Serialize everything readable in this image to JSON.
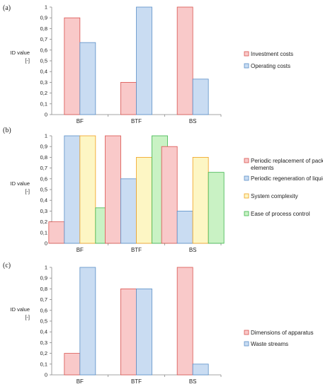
{
  "chart_data": [
    {
      "type": "bar",
      "panel_label": "(a)",
      "ylabel": [
        "ID value",
        "[-]"
      ],
      "categories": [
        "BF",
        "BTF",
        "BS"
      ],
      "yticks": [
        "0",
        "0,1",
        "0,2",
        "0,3",
        "0,4",
        "0,5",
        "0,6",
        "0,7",
        "0,8",
        "0,9",
        "1"
      ],
      "ylim": [
        0,
        1
      ],
      "legend_position": "right",
      "series": [
        {
          "name": "Investment costs",
          "values": [
            0.9,
            0.3,
            1.0
          ],
          "fill": "#f9c9c9",
          "stroke": "#d9534f"
        },
        {
          "name": "Operating costs",
          "values": [
            0.67,
            1.0,
            0.33
          ],
          "fill": "#c9dcf2",
          "stroke": "#5b8fc7"
        }
      ]
    },
    {
      "type": "bar",
      "panel_label": "(b)",
      "ylabel": [
        "ID value",
        "[-]"
      ],
      "categories": [
        "BF",
        "BTF",
        "BS"
      ],
      "yticks": [
        "0",
        "0,1",
        "0,2",
        "0,3",
        "0,4",
        "0,5",
        "0,6",
        "0,7",
        "0,8",
        "0,9",
        "1"
      ],
      "ylim": [
        0,
        1
      ],
      "legend_position": "right",
      "series": [
        {
          "name": [
            "Periodic replacement of packing",
            "elements"
          ],
          "values": [
            0.2,
            1.0,
            0.9
          ],
          "fill": "#f9c9c9",
          "stroke": "#d9534f"
        },
        {
          "name": [
            "Periodic regeneration of liquids"
          ],
          "values": [
            1.0,
            0.6,
            0.3
          ],
          "fill": "#c9dcf2",
          "stroke": "#5b8fc7"
        },
        {
          "name": [
            "System complexity"
          ],
          "values": [
            1.0,
            0.8,
            0.8
          ],
          "fill": "#fdf6c4",
          "stroke": "#f0a020"
        },
        {
          "name": [
            "Ease of process control"
          ],
          "values": [
            0.33,
            1.0,
            0.66
          ],
          "fill": "#c9f2c4",
          "stroke": "#3cb44b"
        }
      ]
    },
    {
      "type": "bar",
      "panel_label": "(c)",
      "ylabel": [
        "ID value",
        "[-]"
      ],
      "categories": [
        "BF",
        "BTF",
        "BS"
      ],
      "yticks": [
        "0",
        "0,1",
        "0,2",
        "0,3",
        "0,4",
        "0,5",
        "0,6",
        "0,7",
        "0,8",
        "0,9",
        "1"
      ],
      "ylim": [
        0,
        1
      ],
      "legend_position": "right",
      "series": [
        {
          "name": "Dimensions of apparatus",
          "values": [
            0.2,
            0.8,
            1.0
          ],
          "fill": "#f9c9c9",
          "stroke": "#d9534f"
        },
        {
          "name": "Waste streams",
          "values": [
            1.0,
            0.8,
            0.1
          ],
          "fill": "#c9dcf2",
          "stroke": "#5b8fc7"
        }
      ]
    }
  ]
}
